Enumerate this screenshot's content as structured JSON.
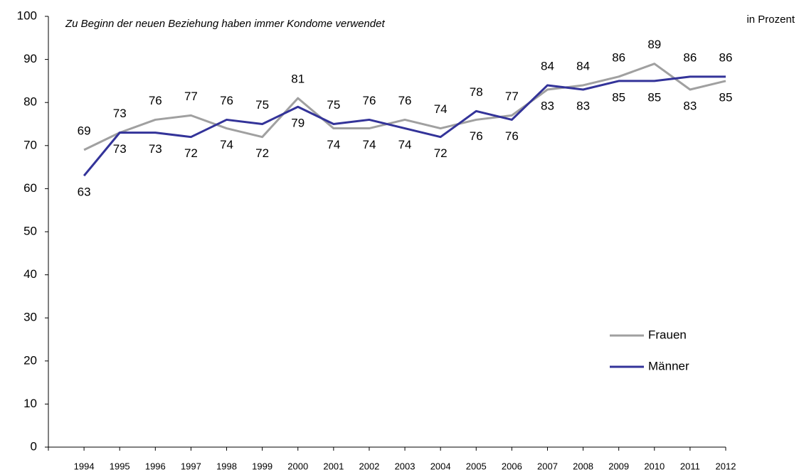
{
  "chart_data": {
    "type": "line",
    "title": "Zu Beginn der neuen Beziehung haben immer Kondome verwendet",
    "unit_label": "in Prozent",
    "categories": [
      "1994",
      "1995",
      "1996",
      "1997",
      "1998",
      "1999",
      "2000",
      "2001",
      "2002",
      "2003",
      "2004",
      "2005",
      "2006",
      "2007",
      "2008",
      "2009",
      "2010",
      "2011",
      "2012"
    ],
    "series": [
      {
        "name": "Frauen",
        "color": "#a0a0a0",
        "values": [
          69,
          73,
          76,
          77,
          74,
          72,
          81,
          74,
          74,
          76,
          74,
          76,
          77,
          83,
          84,
          86,
          89,
          83,
          85
        ]
      },
      {
        "name": "Männer",
        "color": "#333399",
        "values": [
          63,
          73,
          73,
          72,
          76,
          75,
          79,
          75,
          76,
          74,
          72,
          78,
          76,
          84,
          83,
          85,
          85,
          86,
          86
        ]
      }
    ],
    "ylim": [
      0,
      100
    ],
    "yticks": [
      0,
      10,
      20,
      30,
      40,
      50,
      60,
      70,
      80,
      90,
      100
    ],
    "grid": false,
    "legend": "lower right"
  }
}
